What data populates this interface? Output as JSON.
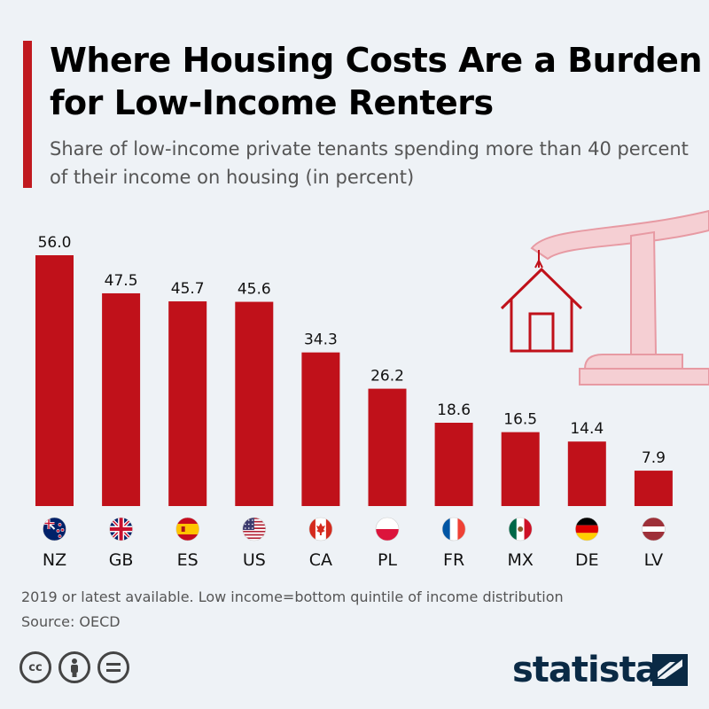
{
  "title": "Where Housing Costs Are a Burden for Low-Income Renters",
  "subtitle": "Share of low-income private tenants spending more than 40 percent of their income on housing (in percent)",
  "notes": {
    "line1": "2019 or latest available. Low income=bottom quintile of income distribution",
    "line2": "Source: OECD"
  },
  "brand": {
    "name": "statista"
  },
  "license_icons": [
    "cc-icon",
    "person-icon",
    "equals-icon"
  ],
  "colors": {
    "bar": "#c0111a",
    "accent": "#c0191f",
    "background": "#eef2f6"
  },
  "chart_data": {
    "type": "bar",
    "title": "Where Housing Costs Are a Burden for Low-Income Renters",
    "xlabel": "",
    "ylabel": "",
    "ylim": [
      0,
      56
    ],
    "categories": [
      "NZ",
      "GB",
      "ES",
      "US",
      "CA",
      "PL",
      "FR",
      "MX",
      "DE",
      "LV"
    ],
    "values": [
      56.0,
      47.5,
      45.7,
      45.6,
      34.3,
      26.2,
      18.6,
      16.5,
      14.4,
      7.9
    ],
    "value_labels": [
      "56.0",
      "47.5",
      "45.7",
      "45.6",
      "34.3",
      "26.2",
      "18.6",
      "16.5",
      "14.4",
      "7.9"
    ],
    "flags": [
      "nz-flag-icon",
      "gb-flag-icon",
      "es-flag-icon",
      "us-flag-icon",
      "ca-flag-icon",
      "pl-flag-icon",
      "fr-flag-icon",
      "mx-flag-icon",
      "de-flag-icon",
      "lv-flag-icon"
    ]
  }
}
